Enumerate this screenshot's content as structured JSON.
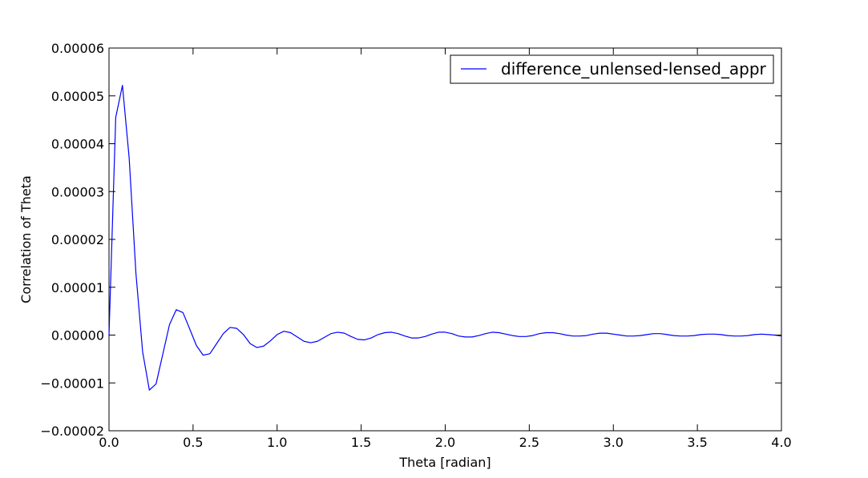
{
  "chart_data": {
    "type": "line",
    "title": "",
    "xlabel": "Theta [radian]",
    "ylabel": "Correlation of Theta",
    "xlim": [
      0.0,
      4.0
    ],
    "ylim": [
      -2e-05,
      6e-05
    ],
    "x_ticks": [
      0.0,
      0.5,
      1.0,
      1.5,
      2.0,
      2.5,
      3.0,
      3.5,
      4.0
    ],
    "x_tick_labels": [
      "0.0",
      "0.5",
      "1.0",
      "1.5",
      "2.0",
      "2.5",
      "3.0",
      "3.5",
      "4.0"
    ],
    "y_ticks": [
      -2e-05,
      -1e-05,
      0.0,
      1e-05,
      2e-05,
      3e-05,
      4e-05,
      5e-05,
      6e-05
    ],
    "y_tick_labels": [
      "−0.00002",
      "−0.00001",
      "0.00000",
      "0.00001",
      "0.00002",
      "0.00003",
      "0.00004",
      "0.00005",
      "0.00006"
    ],
    "grid": false,
    "legend_position": "top-right",
    "series": [
      {
        "name": "difference_unlensed-lensed_appr",
        "color": "#0000ff",
        "x": [
          0.0,
          0.04,
          0.08,
          0.12,
          0.16,
          0.2,
          0.24,
          0.28,
          0.32,
          0.36,
          0.4,
          0.44,
          0.48,
          0.52,
          0.56,
          0.6,
          0.64,
          0.68,
          0.72,
          0.76,
          0.8,
          0.84,
          0.88,
          0.92,
          0.96,
          1.0,
          1.04,
          1.08,
          1.12,
          1.16,
          1.2,
          1.24,
          1.28,
          1.32,
          1.36,
          1.4,
          1.44,
          1.48,
          1.52,
          1.56,
          1.6,
          1.64,
          1.68,
          1.72,
          1.76,
          1.8,
          1.84,
          1.88,
          1.92,
          1.96,
          2.0,
          2.04,
          2.08,
          2.12,
          2.16,
          2.2,
          2.24,
          2.28,
          2.32,
          2.36,
          2.4,
          2.44,
          2.48,
          2.52,
          2.56,
          2.6,
          2.64,
          2.68,
          2.72,
          2.76,
          2.8,
          2.84,
          2.88,
          2.92,
          2.96,
          3.0,
          3.04,
          3.08,
          3.12,
          3.16,
          3.2,
          3.24,
          3.28,
          3.32,
          3.36,
          3.4,
          3.44,
          3.48,
          3.52,
          3.56,
          3.6,
          3.64,
          3.68,
          3.72,
          3.76,
          3.8,
          3.84,
          3.88,
          3.92,
          3.96,
          4.0
        ],
        "y": [
          0.0,
          4.55e-05,
          5.22e-05,
          3.7e-05,
          1.3e-05,
          -3.5e-06,
          -1.15e-05,
          -1.02e-05,
          -4e-06,
          2.2e-06,
          5.3e-06,
          4.7e-06,
          1.3e-06,
          -2.2e-06,
          -4.2e-06,
          -3.9e-06,
          -1.8e-06,
          3e-07,
          1.6e-06,
          1.4e-06,
          1e-07,
          -1.8e-06,
          -2.6e-06,
          -2.3e-06,
          -1.2e-06,
          1e-07,
          8e-07,
          5e-07,
          -4e-07,
          -1.3e-06,
          -1.6e-06,
          -1.3e-06,
          -5e-07,
          3e-07,
          6e-07,
          4e-07,
          -3e-07,
          -9e-07,
          -1e-06,
          -6e-07,
          1e-07,
          5e-07,
          6e-07,
          3e-07,
          -2e-07,
          -6e-07,
          -6e-07,
          -3e-07,
          2e-07,
          6e-07,
          6e-07,
          3e-07,
          -2e-07,
          -4e-07,
          -4e-07,
          -1e-07,
          3e-07,
          6e-07,
          5e-07,
          2e-07,
          -1e-07,
          -3e-07,
          -3e-07,
          -1e-07,
          3e-07,
          5e-07,
          5e-07,
          3e-07,
          0.0,
          -2e-07,
          -2e-07,
          -1e-07,
          2e-07,
          4e-07,
          4e-07,
          2e-07,
          0.0,
          -2e-07,
          -2e-07,
          -1e-07,
          1e-07,
          3e-07,
          3e-07,
          1e-07,
          -1e-07,
          -2e-07,
          -2e-07,
          -1e-07,
          1e-07,
          2e-07,
          2e-07,
          1e-07,
          -1e-07,
          -2e-07,
          -2e-07,
          -1e-07,
          1e-07,
          2e-07,
          1e-07,
          0.0,
          -2e-07
        ]
      }
    ]
  }
}
